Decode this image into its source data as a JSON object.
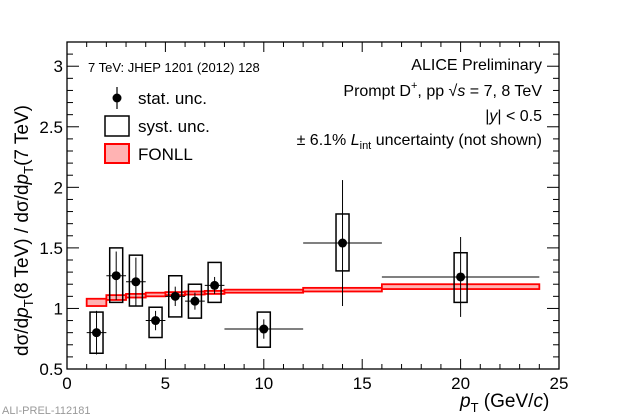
{
  "chart_data": {
    "type": "scatter",
    "xlabel": "p_T (GeV/c)",
    "ylabel": "dσ/dp_T(8 TeV) / dσ/dp_T(7 TeV)",
    "xlim": [
      0,
      25
    ],
    "ylim": [
      0.5,
      3.2
    ],
    "x_ticks": [
      0,
      5,
      10,
      15,
      20,
      25
    ],
    "y_ticks": [
      0.5,
      1,
      1.5,
      2,
      2.5,
      3
    ],
    "grid": false,
    "legend_position": "top-left",
    "texts": {
      "reference": "7 TeV: JHEP 1201 (2012) 128",
      "preliminary": "ALICE Preliminary",
      "process": "Prompt D⁺, pp √s = 7, 8 TeV",
      "rapidity": "|y| < 0.5",
      "luminosity": "± 6.1% L_int uncertainty (not shown)",
      "figure_id": "ALI-PREL-112181"
    },
    "legend": [
      "stat. unc.",
      "syst. unc.",
      "FONLL"
    ],
    "series": [
      {
        "name": "stat. unc.",
        "x": [
          1.5,
          2.5,
          3.5,
          4.5,
          5.5,
          6.5,
          7.5,
          10,
          14,
          20
        ],
        "y": [
          0.8,
          1.27,
          1.22,
          0.9,
          1.1,
          1.06,
          1.19,
          0.83,
          1.54,
          1.26
        ],
        "x_err": [
          0.5,
          0.5,
          0.5,
          0.5,
          0.5,
          0.5,
          0.5,
          2,
          2,
          4
        ],
        "y_err_low": [
          0.18,
          0.2,
          0.2,
          0.08,
          0.08,
          0.07,
          0.07,
          0.08,
          0.52,
          0.33
        ],
        "y_err_high": [
          0.18,
          0.2,
          0.2,
          0.08,
          0.08,
          0.07,
          0.07,
          0.08,
          0.52,
          0.33
        ],
        "color": "#000000"
      },
      {
        "name": "syst. unc.",
        "x": [
          1.5,
          2.5,
          3.5,
          4.5,
          5.5,
          6.5,
          7.5,
          10,
          14,
          20
        ],
        "y_low": [
          0.63,
          1.05,
          1.02,
          0.76,
          0.93,
          0.92,
          1.05,
          0.68,
          1.31,
          1.05
        ],
        "y_high": [
          0.97,
          1.5,
          1.44,
          1.01,
          1.27,
          1.2,
          1.38,
          0.97,
          1.78,
          1.46
        ],
        "color": "#000000"
      },
      {
        "name": "FONLL",
        "x_low": [
          1,
          2,
          3,
          4,
          5,
          6,
          7,
          8,
          12,
          16
        ],
        "x_high": [
          2,
          3,
          4,
          5,
          6,
          7,
          8,
          12,
          16,
          24
        ],
        "y_low": [
          1.02,
          1.07,
          1.09,
          1.1,
          1.11,
          1.115,
          1.12,
          1.13,
          1.14,
          1.16
        ],
        "y_high": [
          1.08,
          1.11,
          1.12,
          1.13,
          1.135,
          1.14,
          1.145,
          1.155,
          1.17,
          1.2
        ],
        "color": "#ff0000"
      }
    ]
  }
}
